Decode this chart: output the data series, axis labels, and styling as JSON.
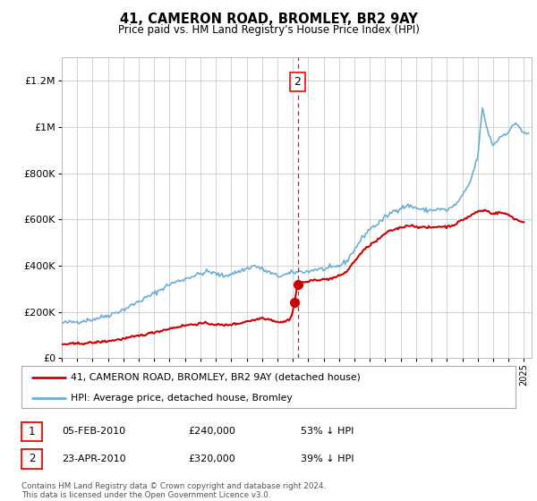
{
  "title": "41, CAMERON ROAD, BROMLEY, BR2 9AY",
  "subtitle": "Price paid vs. HM Land Registry's House Price Index (HPI)",
  "ylim": [
    0,
    1300000
  ],
  "yticks": [
    0,
    200000,
    400000,
    600000,
    800000,
    1000000,
    1200000
  ],
  "xlim_start": 1995.0,
  "xlim_end": 2025.5,
  "legend_line1": "41, CAMERON ROAD, BROMLEY, BR2 9AY (detached house)",
  "legend_line2": "HPI: Average price, detached house, Bromley",
  "annotation1_label": "1",
  "annotation1_date": "05-FEB-2010",
  "annotation1_price": "£240,000",
  "annotation1_pct": "53% ↓ HPI",
  "annotation2_label": "2",
  "annotation2_date": "23-APR-2010",
  "annotation2_price": "£320,000",
  "annotation2_pct": "39% ↓ HPI",
  "footer": "Contains HM Land Registry data © Crown copyright and database right 2024.\nThis data is licensed under the Open Government Licence v3.0.",
  "sale1_x": 2010.09,
  "sale1_y": 240000,
  "sale2_x": 2010.31,
  "sale2_y": 320000,
  "vline_x": 2010.31,
  "hpi_color": "#6baed6",
  "price_color": "#cc0000",
  "bg_color": "#ffffff",
  "grid_color": "#cccccc"
}
